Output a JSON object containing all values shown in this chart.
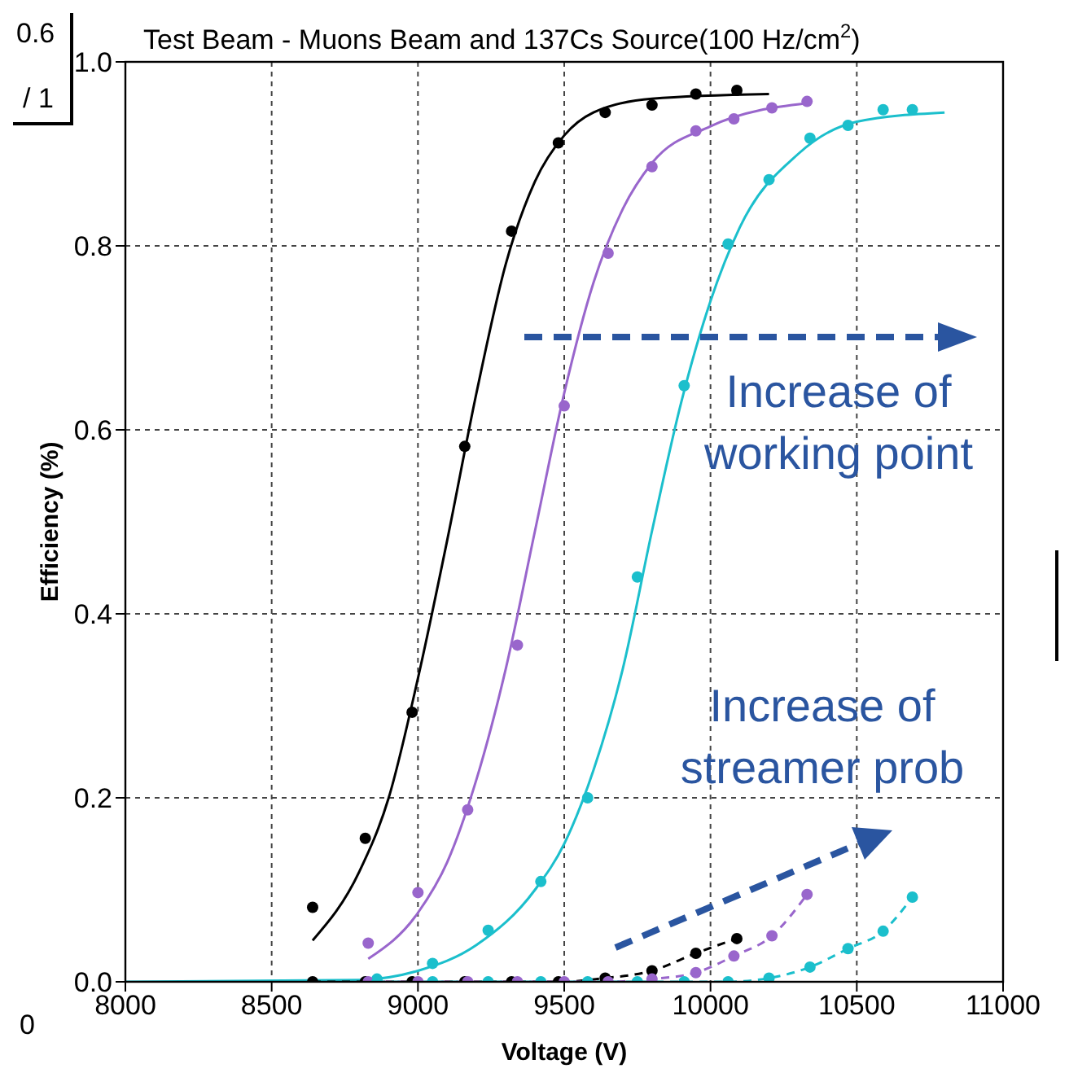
{
  "chart_data": {
    "type": "scatter",
    "title": "Test Beam - Muons Beam and 137Cs Source(100 Hz/cm$^{2}$)",
    "xlabel": "Voltage (V)",
    "ylabel": "Efficiency (%)",
    "xlim": [
      8000,
      11000
    ],
    "xticks": [
      8000,
      8500,
      9000,
      9500,
      10000,
      10500,
      11000
    ],
    "ylim": [
      0,
      1
    ],
    "yticks": [
      {
        "value": 0,
        "label": "0.0"
      },
      0.2,
      0.4,
      0.6,
      0.8,
      {
        "value": 1,
        "label": "1.0"
      }
    ],
    "grid": true,
    "annotations": [
      "Increase of working point",
      "Increase of streamer prob",
      "0.6",
      "/ 1",
      "0"
    ],
    "series": [
      {
        "type": "scatter",
        "color": "#000000",
        "marker": "circle",
        "x": [
          8640,
          8820,
          8980,
          9160,
          9320,
          9480,
          9640,
          9800,
          9950,
          10090
        ],
        "values": [
          0.081,
          0.156,
          0.293,
          0.582,
          0.816,
          0.912,
          0.945,
          0.953,
          0.965,
          0.969
        ]
      },
      {
        "type": "scatter",
        "color": "#9966cc",
        "marker": "circle",
        "x": [
          8830,
          9000,
          9170,
          9340,
          9500,
          9650,
          9800,
          9950,
          10080,
          10210,
          10330
        ],
        "values": [
          0.042,
          0.097,
          0.187,
          0.366,
          0.626,
          0.792,
          0.886,
          0.925,
          0.938,
          0.95,
          0.957
        ]
      },
      {
        "type": "scatter",
        "color": "#1bbfcc",
        "marker": "circle",
        "x": [
          8860,
          9050,
          9240,
          9420,
          9580,
          9750,
          9910,
          10060,
          10200,
          10340,
          10470,
          10590,
          10690
        ],
        "values": [
          0.003,
          0.02,
          0.056,
          0.109,
          0.2,
          0.44,
          0.648,
          0.802,
          0.872,
          0.917,
          0.931,
          0.948,
          0.948
        ]
      },
      {
        "type": "line",
        "color": "#000000",
        "marker": "none",
        "line_style": "solid",
        "x": [
          8640,
          8800,
          8900,
          9000,
          9100,
          9200,
          9300,
          9400,
          9500,
          9600,
          9800,
          10200
        ],
        "values": [
          0.045,
          0.12,
          0.2,
          0.33,
          0.48,
          0.64,
          0.78,
          0.87,
          0.92,
          0.945,
          0.96,
          0.965
        ]
      },
      {
        "type": "line",
        "color": "#9966cc",
        "marker": "none",
        "line_style": "solid",
        "x": [
          8830,
          9000,
          9100,
          9200,
          9300,
          9400,
          9500,
          9600,
          9700,
          9800,
          10000,
          10330
        ],
        "values": [
          0.025,
          0.075,
          0.13,
          0.22,
          0.34,
          0.49,
          0.64,
          0.76,
          0.84,
          0.89,
          0.93,
          0.955
        ]
      },
      {
        "type": "line",
        "color": "#1bbfcc",
        "marker": "none",
        "line_style": "solid",
        "x": [
          8000,
          8800,
          9000,
          9200,
          9400,
          9500,
          9600,
          9700,
          9800,
          9900,
          10000,
          10100,
          10300,
          10500,
          10800
        ],
        "values": [
          0,
          0.002,
          0.012,
          0.04,
          0.1,
          0.15,
          0.23,
          0.34,
          0.49,
          0.63,
          0.74,
          0.82,
          0.9,
          0.935,
          0.945
        ]
      },
      {
        "type": "line",
        "color": "#000000",
        "marker": "circle",
        "line_style": "dashed",
        "x": [
          8640,
          8820,
          8980,
          9160,
          9320,
          9480,
          9640,
          9800,
          9950,
          10090
        ],
        "values": [
          0,
          0,
          0,
          0,
          0,
          0,
          0.004,
          0.012,
          0.031,
          0.047
        ]
      },
      {
        "type": "line",
        "color": "#9966cc",
        "marker": "circle",
        "line_style": "dashed",
        "x": [
          8830,
          9000,
          9170,
          9340,
          9500,
          9650,
          9800,
          9950,
          10080,
          10210,
          10330
        ],
        "values": [
          0,
          0,
          0,
          0,
          0,
          0,
          0.003,
          0.01,
          0.028,
          0.05,
          0.095
        ]
      },
      {
        "type": "line",
        "color": "#1bbfcc",
        "marker": "circle",
        "line_style": "dashed",
        "x": [
          8860,
          9050,
          9240,
          9420,
          9580,
          9750,
          9910,
          10060,
          10200,
          10340,
          10470,
          10590,
          10690
        ],
        "values": [
          0,
          0,
          0,
          0,
          0,
          0,
          0,
          0,
          0.004,
          0.016,
          0.036,
          0.055,
          0.092
        ]
      }
    ]
  }
}
